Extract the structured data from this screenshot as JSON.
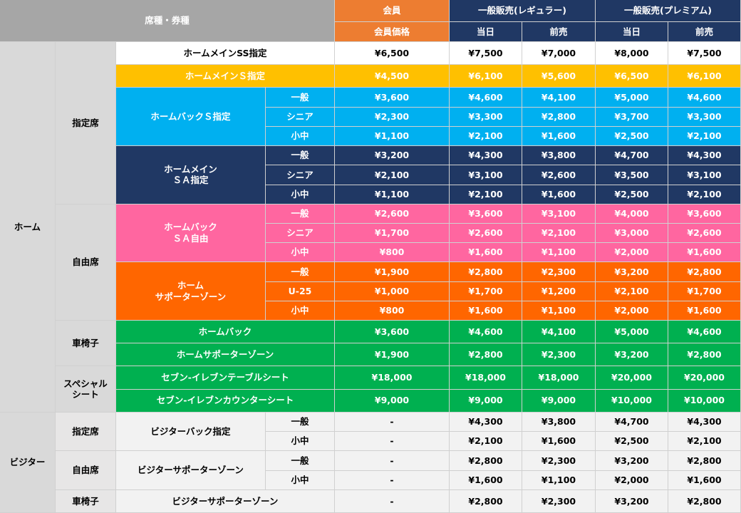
{
  "header": {
    "seat_label": "席種・券種",
    "groups": [
      {
        "name": "会員",
        "color": "#ed7d31",
        "subs": [
          "会員価格"
        ]
      },
      {
        "name": "一般販売(レギュラー)",
        "color": "#203864",
        "subs": [
          "当日",
          "前売"
        ]
      },
      {
        "name": "一般販売(プレミアム)",
        "color": "#203864",
        "subs": [
          "当日",
          "前売"
        ]
      }
    ]
  },
  "sections": [
    {
      "name": "ホーム",
      "categories": [
        {
          "name": "指定席",
          "seats": [
            {
              "name": "ホームメインSS指定",
              "color": "#ffffff",
              "text": "#000000",
              "rows": [
                {
                  "prices": [
                    "¥6,500",
                    "¥7,500",
                    "¥7,000",
                    "¥8,000",
                    "¥7,500"
                  ]
                }
              ]
            },
            {
              "name": "ホームメインＳ指定",
              "color": "#ffc000",
              "text": "#ffffff",
              "rows": [
                {
                  "prices": [
                    "¥4,500",
                    "¥6,100",
                    "¥5,600",
                    "¥6,500",
                    "¥6,100"
                  ]
                }
              ]
            },
            {
              "name": "ホームバックＳ指定",
              "color": "#00b0f0",
              "text": "#ffffff",
              "rows": [
                {
                  "type": "一般",
                  "prices": [
                    "¥3,600",
                    "¥4,600",
                    "¥4,100",
                    "¥5,000",
                    "¥4,600"
                  ]
                },
                {
                  "type": "シニア",
                  "prices": [
                    "¥2,300",
                    "¥3,300",
                    "¥2,800",
                    "¥3,700",
                    "¥3,300"
                  ]
                },
                {
                  "type": "小中",
                  "prices": [
                    "¥1,100",
                    "¥2,100",
                    "¥1,600",
                    "¥2,500",
                    "¥2,100"
                  ]
                }
              ]
            },
            {
              "name": "ホームメイン\nＳＡ指定",
              "color": "#203864",
              "text": "#ffffff",
              "rows": [
                {
                  "type": "一般",
                  "prices": [
                    "¥3,200",
                    "¥4,300",
                    "¥3,800",
                    "¥4,700",
                    "¥4,300"
                  ]
                },
                {
                  "type": "シニア",
                  "prices": [
                    "¥2,100",
                    "¥3,100",
                    "¥2,600",
                    "¥3,500",
                    "¥3,100"
                  ]
                },
                {
                  "type": "小中",
                  "prices": [
                    "¥1,100",
                    "¥2,100",
                    "¥1,600",
                    "¥2,500",
                    "¥2,100"
                  ]
                }
              ]
            }
          ]
        },
        {
          "name": "自由席",
          "seats": [
            {
              "name": "ホームバック\nＳＡ自由",
              "color": "#ff66a0",
              "text": "#ffffff",
              "rows": [
                {
                  "type": "一般",
                  "prices": [
                    "¥2,600",
                    "¥3,600",
                    "¥3,100",
                    "¥4,000",
                    "¥3,600"
                  ]
                },
                {
                  "type": "シニア",
                  "prices": [
                    "¥1,700",
                    "¥2,600",
                    "¥2,100",
                    "¥3,000",
                    "¥2,600"
                  ]
                },
                {
                  "type": "小中",
                  "prices": [
                    "¥800",
                    "¥1,600",
                    "¥1,100",
                    "¥2,000",
                    "¥1,600"
                  ]
                }
              ]
            },
            {
              "name": "ホーム\nサポーターゾーン",
              "color": "#ff6600",
              "text": "#ffffff",
              "rows": [
                {
                  "type": "一般",
                  "prices": [
                    "¥1,900",
                    "¥2,800",
                    "¥2,300",
                    "¥3,200",
                    "¥2,800"
                  ]
                },
                {
                  "type": "U-25",
                  "prices": [
                    "¥1,000",
                    "¥1,700",
                    "¥1,200",
                    "¥2,100",
                    "¥1,700"
                  ]
                },
                {
                  "type": "小中",
                  "prices": [
                    "¥800",
                    "¥1,600",
                    "¥1,100",
                    "¥2,000",
                    "¥1,600"
                  ]
                }
              ]
            }
          ]
        },
        {
          "name": "車椅子",
          "seats": [
            {
              "name": "ホームバック",
              "color": "#00b050",
              "text": "#ffffff",
              "rows": [
                {
                  "prices": [
                    "¥3,600",
                    "¥4,600",
                    "¥4,100",
                    "¥5,000",
                    "¥4,600"
                  ]
                }
              ]
            },
            {
              "name": "ホームサポーターゾーン",
              "color": "#00b050",
              "text": "#ffffff",
              "rows": [
                {
                  "prices": [
                    "¥1,900",
                    "¥2,800",
                    "¥2,300",
                    "¥3,200",
                    "¥2,800"
                  ]
                }
              ]
            }
          ]
        },
        {
          "name": "スペシャル\nシート",
          "seats": [
            {
              "name": "セブン-イレブンテーブルシート",
              "color": "#00b050",
              "text": "#ffffff",
              "rows": [
                {
                  "prices": [
                    "¥18,000",
                    "¥18,000",
                    "¥18,000",
                    "¥20,000",
                    "¥20,000"
                  ]
                }
              ]
            },
            {
              "name": "セブン-イレブンカウンターシート",
              "color": "#00b050",
              "text": "#ffffff",
              "rows": [
                {
                  "prices": [
                    "¥9,000",
                    "¥9,000",
                    "¥9,000",
                    "¥10,000",
                    "¥10,000"
                  ]
                }
              ]
            }
          ]
        }
      ]
    },
    {
      "name": "ビジター",
      "categories": [
        {
          "name": "指定席",
          "seats": [
            {
              "name": "ビジターバック指定",
              "color": "#f2f2f2",
              "text": "#000000",
              "rows": [
                {
                  "type": "一般",
                  "prices": [
                    "-",
                    "¥4,300",
                    "¥3,800",
                    "¥4,700",
                    "¥4,300"
                  ]
                },
                {
                  "type": "小中",
                  "prices": [
                    "-",
                    "¥2,100",
                    "¥1,600",
                    "¥2,500",
                    "¥2,100"
                  ]
                }
              ]
            }
          ]
        },
        {
          "name": "自由席",
          "seats": [
            {
              "name": "ビジターサポーターゾーン",
              "color": "#f2f2f2",
              "text": "#000000",
              "rows": [
                {
                  "type": "一般",
                  "prices": [
                    "-",
                    "¥2,800",
                    "¥2,300",
                    "¥3,200",
                    "¥2,800"
                  ]
                },
                {
                  "type": "小中",
                  "prices": [
                    "-",
                    "¥1,600",
                    "¥1,100",
                    "¥2,000",
                    "¥1,600"
                  ]
                }
              ]
            }
          ]
        },
        {
          "name": "車椅子",
          "seats": [
            {
              "name": "ビジターサポーターゾーン",
              "color": "#f2f2f2",
              "text": "#000000",
              "rows": [
                {
                  "prices": [
                    "-",
                    "¥2,800",
                    "¥2,300",
                    "¥3,200",
                    "¥2,800"
                  ]
                }
              ]
            }
          ]
        }
      ]
    }
  ]
}
